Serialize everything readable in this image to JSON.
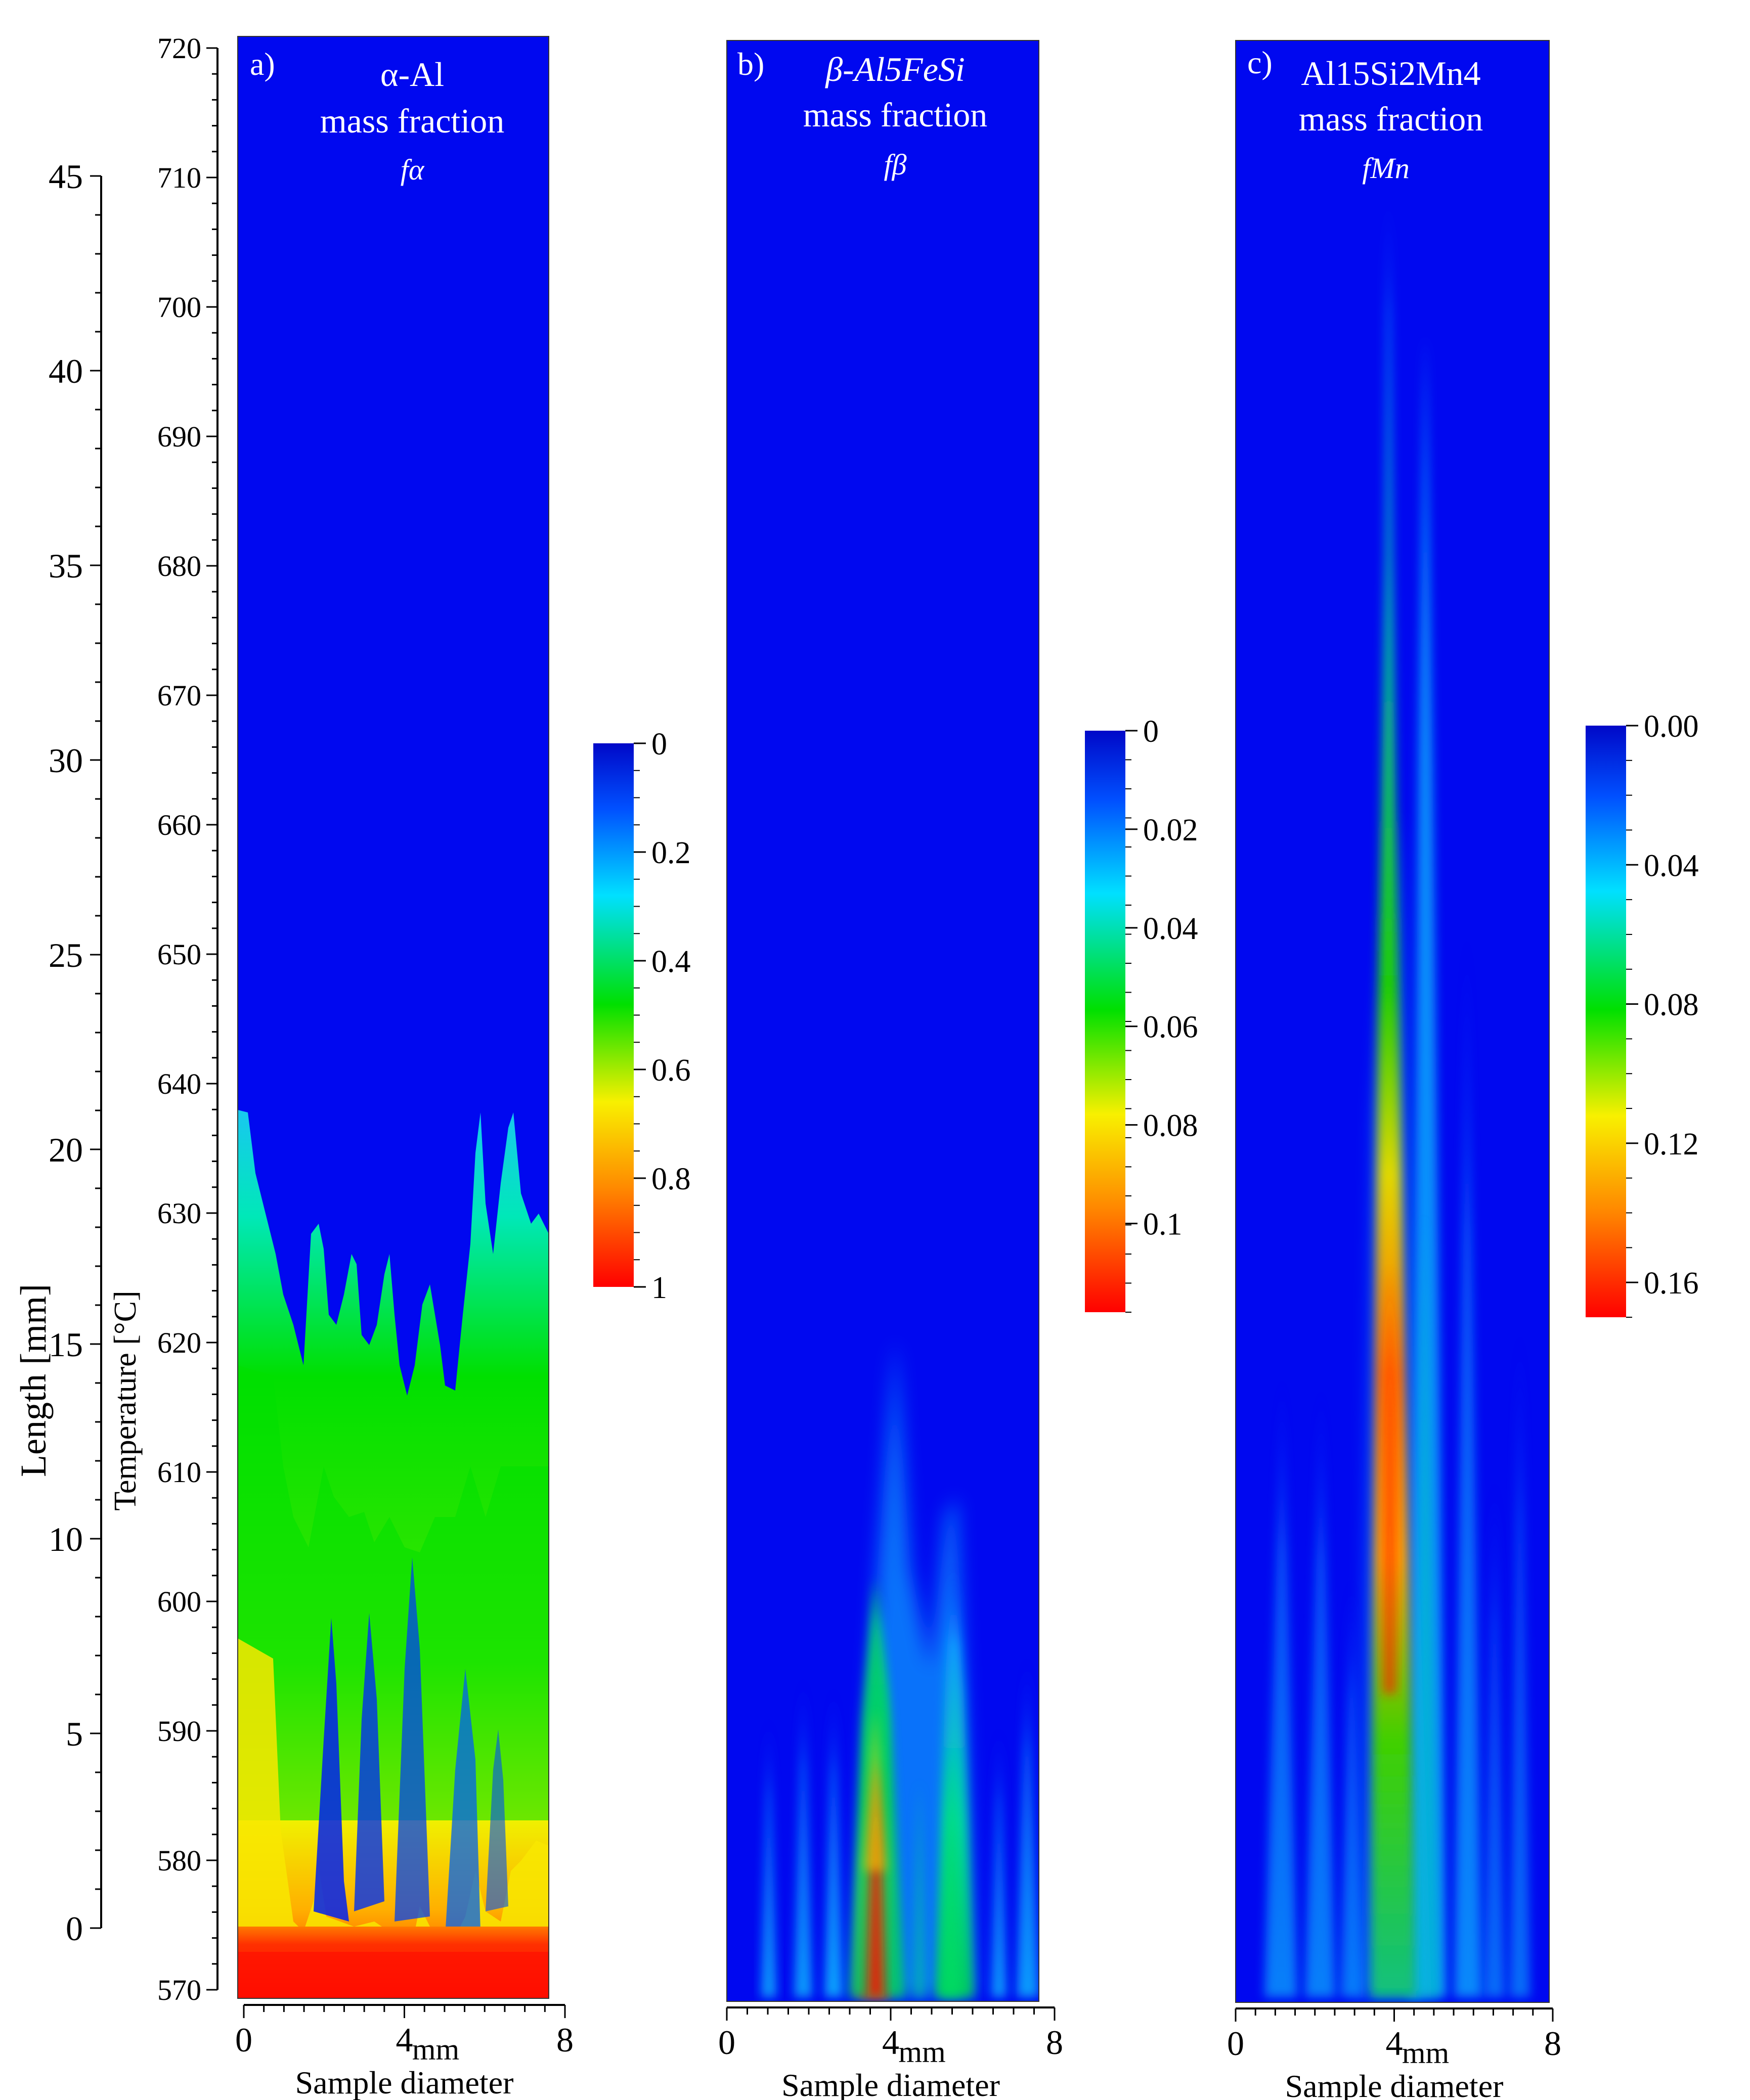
{
  "chart_data": {
    "type": "heatmap",
    "length_axis": {
      "label": "Length [mm]",
      "ticks": [
        0,
        5,
        10,
        15,
        20,
        25,
        30,
        35,
        40,
        45
      ],
      "range": [
        0,
        45
      ]
    },
    "temperature_axis": {
      "label": "Temperature [°C]",
      "ticks": [
        570,
        580,
        590,
        600,
        610,
        620,
        630,
        640,
        650,
        660,
        670,
        680,
        690,
        700,
        710,
        720
      ],
      "range": [
        570,
        720
      ]
    },
    "x_axis": {
      "label": "Sample diameter",
      "unit": "mm",
      "ticks": [
        0,
        4,
        8
      ],
      "range": [
        0,
        8
      ]
    },
    "panels": [
      {
        "id": "a",
        "letter": "a)",
        "title_lines": [
          "α-Al",
          "mass fraction"
        ],
        "symbol": "fα",
        "colorbar": {
          "min": 0,
          "max": 1,
          "ticks": [
            "0",
            "0.2",
            "0.4",
            "0.6",
            "0.8",
            "1"
          ]
        },
        "front_temperature_approx": 630,
        "bottom_value_approx": 0.9
      },
      {
        "id": "b",
        "letter": "b)",
        "title_lines": [
          "β-Al5FeSi",
          "mass fraction"
        ],
        "symbol": "fβ",
        "colorbar": {
          "min": 0,
          "max": 0.118,
          "ticks": [
            "0",
            "0.02",
            "0.04",
            "0.06",
            "0.08",
            "0.1"
          ]
        },
        "peak_value_approx": 0.11,
        "peak_x_mm_approx": 3.6
      },
      {
        "id": "c",
        "letter": "c)",
        "title_lines": [
          "Al15Si2Mn4",
          "mass fraction"
        ],
        "symbol": "fMn",
        "colorbar": {
          "min": 0,
          "max": 0.17,
          "ticks": [
            "0.00",
            "0.04",
            "0.08",
            "0.12",
            "0.16"
          ]
        },
        "peak_value_approx": 0.16,
        "peak_x_mm_approx": 3.9
      }
    ],
    "colormap": [
      "#0000f0",
      "#00e0ff",
      "#00e800",
      "#f8f000",
      "#ff8800",
      "#ff0000"
    ]
  }
}
